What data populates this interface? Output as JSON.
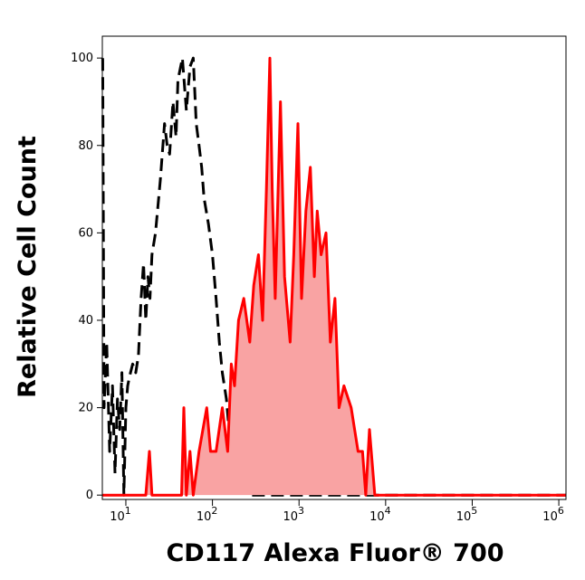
{
  "chart_data": {
    "type": "histogram-overlay",
    "log_x": true,
    "x_label": "CD117 Alexa Fluor® 700",
    "y_label": "Relative Cell Count",
    "xlim": [
      5.35,
      1210000
    ],
    "ylim": [
      -1,
      105
    ],
    "xticks": [
      {
        "value": 10,
        "label": "10",
        "exponent": "1"
      },
      {
        "value": 100,
        "label": "10",
        "exponent": "2"
      },
      {
        "value": 1000,
        "label": "10",
        "exponent": "3"
      },
      {
        "value": 10000,
        "label": "10",
        "exponent": "4"
      },
      {
        "value": 100000,
        "label": "10",
        "exponent": "5"
      },
      {
        "value": 1000000,
        "label": "10",
        "exponent": "6"
      }
    ],
    "yticks": [
      0,
      20,
      40,
      60,
      80,
      100
    ],
    "series": [
      {
        "color": "#000000",
        "dashed": true,
        "filled": false,
        "x": [
          5.4,
          5.6,
          6,
          6.5,
          7,
          7.5,
          8,
          8.5,
          9,
          9.5,
          10,
          10.5,
          11,
          12,
          13,
          14,
          15,
          16,
          17,
          18,
          19,
          20,
          22,
          25,
          28,
          30,
          32,
          35,
          38,
          40,
          45,
          50,
          55,
          60,
          65,
          70,
          75,
          80,
          90,
          100,
          110,
          120,
          130,
          145,
          160,
          180,
          200,
          230,
          260,
          1200000
        ],
        "values": [
          100,
          20,
          35,
          10,
          25,
          5,
          22,
          15,
          28,
          0,
          20,
          25,
          27,
          30,
          28,
          32,
          45,
          53,
          40,
          50,
          45,
          55,
          60,
          72,
          85,
          80,
          78,
          90,
          82,
          95,
          100,
          88,
          98,
          100,
          85,
          80,
          75,
          68,
          62,
          55,
          45,
          35,
          28,
          22,
          12,
          6,
          3,
          1,
          0,
          0
        ]
      },
      {
        "color": "#ff0000",
        "fill": "#f9a3a3",
        "dashed": false,
        "filled": true,
        "x": [
          5.4,
          17,
          18.7,
          20,
          44,
          46.7,
          50,
          55,
          60,
          70,
          86,
          95,
          110,
          130,
          150,
          165,
          180,
          200,
          230,
          270,
          300,
          340,
          380,
          420,
          460,
          490,
          530,
          610,
          680,
          790,
          870,
          970,
          1070,
          1200,
          1350,
          1500,
          1620,
          1800,
          2050,
          2300,
          2600,
          2900,
          3300,
          4000,
          4800,
          5400,
          5900,
          6500,
          7500,
          1210000
        ],
        "values": [
          0,
          0,
          10,
          0,
          0,
          20,
          0,
          10,
          0,
          10,
          20,
          10,
          10,
          20,
          10,
          30,
          25,
          40,
          45,
          35,
          48,
          55,
          40,
          70,
          100,
          70,
          45,
          90,
          50,
          35,
          55,
          85,
          45,
          65,
          75,
          50,
          65,
          55,
          60,
          35,
          45,
          20,
          25,
          20,
          10,
          10,
          0,
          15,
          0,
          0
        ]
      }
    ]
  }
}
